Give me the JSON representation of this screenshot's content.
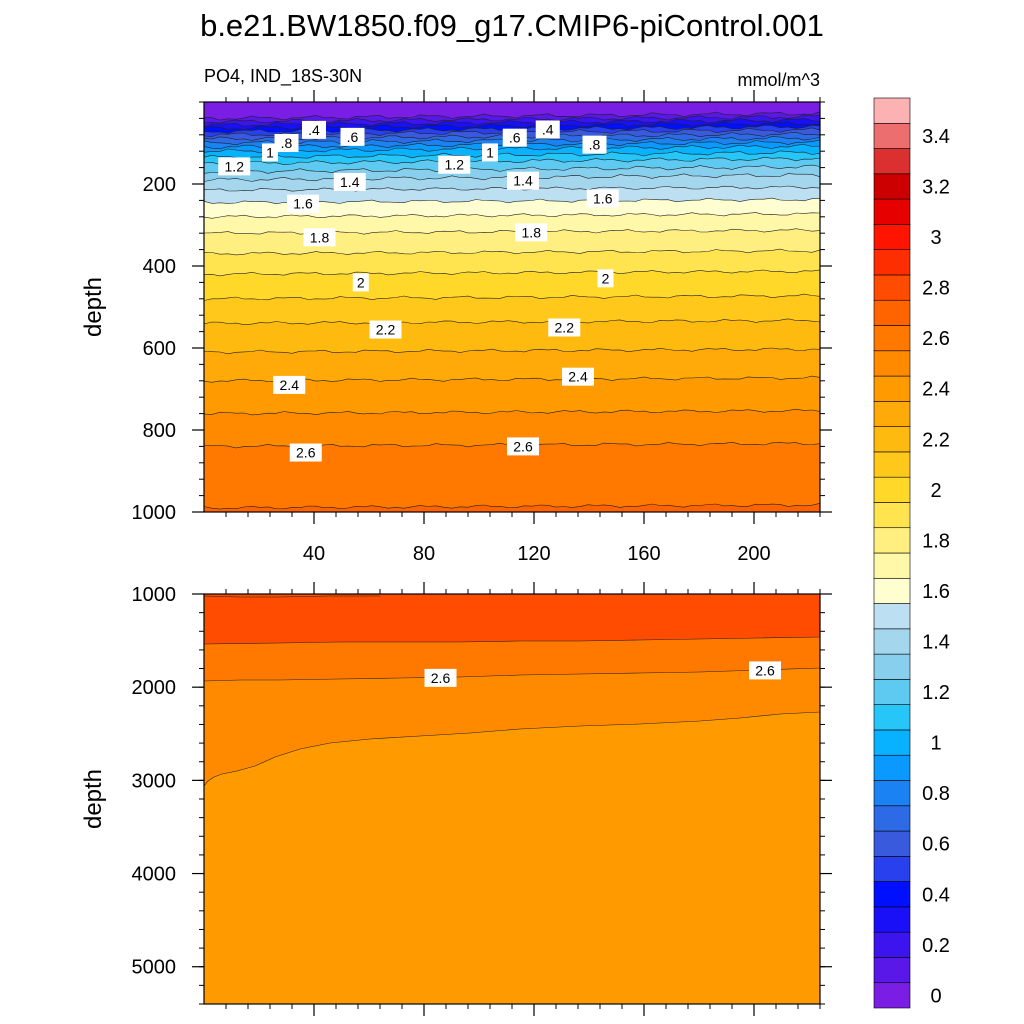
{
  "title": "b.e21.BW1850.f09_g17.CMIP6-piControl.001",
  "chart_data": {
    "type": "contour",
    "variable_label": "PO4, IND_18S-30N",
    "units_label": "mmol/m^3",
    "x_range": [
      0,
      224
    ],
    "x_ticks": [
      "40",
      "80",
      "120",
      "160",
      "200"
    ],
    "x_tick_values": [
      40,
      80,
      120,
      160,
      200
    ],
    "colorbar": {
      "levels": [
        0,
        0.1,
        0.2,
        0.3,
        0.4,
        0.5,
        0.6,
        0.7,
        0.8,
        0.9,
        1.0,
        1.1,
        1.2,
        1.3,
        1.4,
        1.5,
        1.6,
        1.7,
        1.8,
        1.9,
        2.0,
        2.1,
        2.2,
        2.3,
        2.4,
        2.5,
        2.6,
        2.7,
        2.8,
        2.9,
        3.0,
        3.1,
        3.2,
        3.3,
        3.4,
        3.5
      ],
      "labels": [
        "0",
        "0.2",
        "0.4",
        "0.6",
        "0.8",
        "1",
        "1.2",
        "1.4",
        "1.6",
        "1.8",
        "2",
        "2.2",
        "2.4",
        "2.6",
        "2.8",
        "3",
        "3.2",
        "3.4"
      ],
      "label_values": [
        0,
        0.2,
        0.4,
        0.6,
        0.8,
        1.0,
        1.2,
        1.4,
        1.6,
        1.8,
        2.0,
        2.2,
        2.4,
        2.6,
        2.8,
        3.0,
        3.2,
        3.4
      ],
      "colors": [
        "#7a1ee6",
        "#5a18e8",
        "#3c14ee",
        "#1a10f8",
        "#0010ff",
        "#2840ee",
        "#3a5ade",
        "#2c6ae6",
        "#1a82f2",
        "#0a9aff",
        "#08b2ff",
        "#26c6f8",
        "#5ecaf2",
        "#88cfee",
        "#a4d6ee",
        "#bcdff2",
        "#fffed0",
        "#fff8a8",
        "#ffef80",
        "#ffe450",
        "#ffd82a",
        "#ffc81a",
        "#ffba10",
        "#ffaa08",
        "#ff9a00",
        "#ff8a00",
        "#ff7800",
        "#ff6400",
        "#ff4c00",
        "#ff2e00",
        "#ff1400",
        "#e60000",
        "#cc0000",
        "#dc3030",
        "#ec6e6e",
        "#fcb2b2"
      ]
    },
    "upper_panel": {
      "ylabel": "depth",
      "y_range": [
        0,
        1000
      ],
      "y_ticks": [
        "200",
        "400",
        "600",
        "800",
        "1000"
      ],
      "y_tick_values": [
        200,
        400,
        600,
        800,
        1000
      ],
      "contour_levels": [
        {
          "value": 0.1,
          "depth": 40
        },
        {
          "value": 0.2,
          "depth": 48
        },
        {
          "value": 0.3,
          "depth": 56
        },
        {
          "value": 0.4,
          "depth": 64
        },
        {
          "value": 0.5,
          "depth": 72
        },
        {
          "value": 0.6,
          "depth": 80
        },
        {
          "value": 0.7,
          "depth": 90
        },
        {
          "value": 0.8,
          "depth": 100
        },
        {
          "value": 0.9,
          "depth": 110
        },
        {
          "value": 1.0,
          "depth": 120
        },
        {
          "value": 1.1,
          "depth": 135
        },
        {
          "value": 1.2,
          "depth": 150
        },
        {
          "value": 1.3,
          "depth": 170
        },
        {
          "value": 1.4,
          "depth": 190
        },
        {
          "value": 1.5,
          "depth": 215
        },
        {
          "value": 1.6,
          "depth": 245
        },
        {
          "value": 1.7,
          "depth": 280
        },
        {
          "value": 1.8,
          "depth": 320
        },
        {
          "value": 1.9,
          "depth": 370
        },
        {
          "value": 2.0,
          "depth": 420
        },
        {
          "value": 2.1,
          "depth": 480
        },
        {
          "value": 2.2,
          "depth": 540
        },
        {
          "value": 2.3,
          "depth": 610
        },
        {
          "value": 2.4,
          "depth": 680
        },
        {
          "value": 2.5,
          "depth": 760
        },
        {
          "value": 2.6,
          "depth": 840
        },
        {
          "value": 2.7,
          "depth": 990
        }
      ],
      "contour_labels": [
        {
          "text": ".4",
          "x": 40,
          "depth": 68
        },
        {
          "text": ".6",
          "x": 54,
          "depth": 85
        },
        {
          "text": ".8",
          "x": 30,
          "depth": 100
        },
        {
          "text": "1",
          "x": 24,
          "depth": 123
        },
        {
          "text": "1.2",
          "x": 11,
          "depth": 157
        },
        {
          "text": "1.4",
          "x": 53,
          "depth": 195
        },
        {
          "text": "1.6",
          "x": 36,
          "depth": 248
        },
        {
          "text": "1.8",
          "x": 42,
          "depth": 330
        },
        {
          "text": "2",
          "x": 57,
          "depth": 440
        },
        {
          "text": "2.2",
          "x": 66,
          "depth": 555
        },
        {
          "text": "2.4",
          "x": 31,
          "depth": 690
        },
        {
          "text": "2.6",
          "x": 37,
          "depth": 855
        },
        {
          "text": ".4",
          "x": 125,
          "depth": 67
        },
        {
          "text": ".6",
          "x": 113,
          "depth": 87
        },
        {
          "text": "1",
          "x": 104,
          "depth": 123
        },
        {
          "text": "1.2",
          "x": 91,
          "depth": 153
        },
        {
          "text": "1.4",
          "x": 116,
          "depth": 192
        },
        {
          "text": ".8",
          "x": 142,
          "depth": 104
        },
        {
          "text": "1.6",
          "x": 145,
          "depth": 235
        },
        {
          "text": "1.8",
          "x": 119,
          "depth": 318
        },
        {
          "text": "2",
          "x": 146,
          "depth": 430
        },
        {
          "text": "2.2",
          "x": 131,
          "depth": 550
        },
        {
          "text": "2.4",
          "x": 136,
          "depth": 670
        },
        {
          "text": "2.6",
          "x": 116,
          "depth": 840
        }
      ]
    },
    "lower_panel": {
      "ylabel": "depth",
      "y_range": [
        1000,
        5400
      ],
      "y_ticks": [
        "1000",
        "2000",
        "3000",
        "4000",
        "5000"
      ],
      "y_tick_values": [
        1000,
        2000,
        3000,
        4000,
        5000
      ],
      "contour_labels": [
        {
          "text": "2.6",
          "x": 86,
          "depth": 1900
        },
        {
          "text": "2.6",
          "x": 204,
          "depth": 1820
        }
      ]
    }
  }
}
